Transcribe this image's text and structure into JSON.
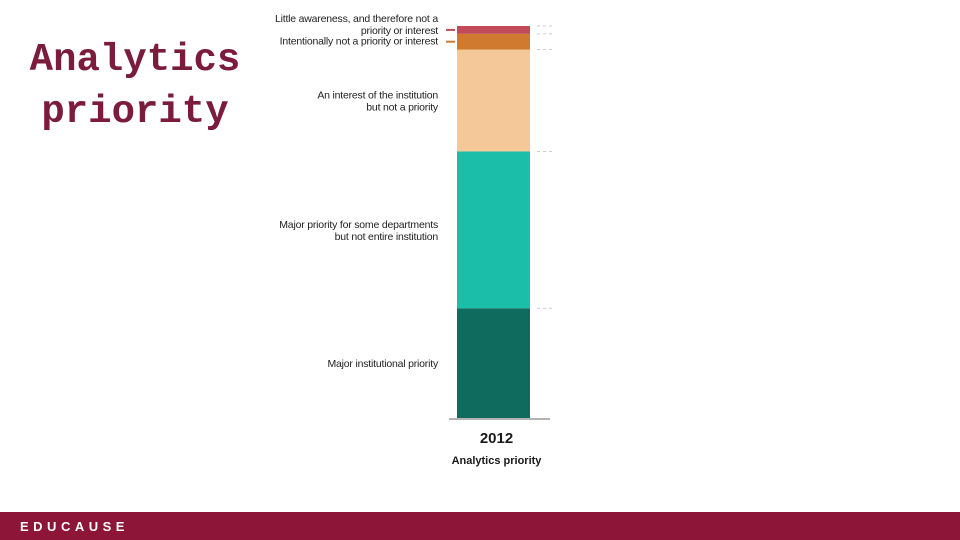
{
  "slide": {
    "title": "Analytics priority"
  },
  "footer": {
    "brand": "EDUCAUSE"
  },
  "chart_data": {
    "type": "bar",
    "stacked": true,
    "categories": [
      "2012"
    ],
    "xlabel": "Analytics priority",
    "ylim": [
      0,
      100
    ],
    "grid": "dashed horizontal guide lines",
    "series": [
      {
        "name": "Major institutional priority",
        "values": [
          28
        ],
        "color": "#0e6b5e"
      },
      {
        "name": "Major priority for some departments but not entire institution",
        "values": [
          40
        ],
        "color": "#1bbfa9"
      },
      {
        "name": "An interest of the institution but not a priority",
        "values": [
          26
        ],
        "color": "#f4c898"
      },
      {
        "name": "Intentionally not a priority or interest",
        "values": [
          4
        ],
        "color": "#cf7a2e"
      },
      {
        "name": "Little awareness, and therefore not a priority or interest",
        "values": [
          2
        ],
        "color": "#c24b5a"
      }
    ],
    "label_lines": [
      [
        "Major institutional priority"
      ],
      [
        "Major priority for some departments",
        "but not entire institution"
      ],
      [
        "An interest of the institution",
        "but not a priority"
      ],
      [
        "Intentionally not a priority or interest"
      ],
      [
        "Little awareness, and therefore not a",
        "priority or interest"
      ]
    ]
  }
}
